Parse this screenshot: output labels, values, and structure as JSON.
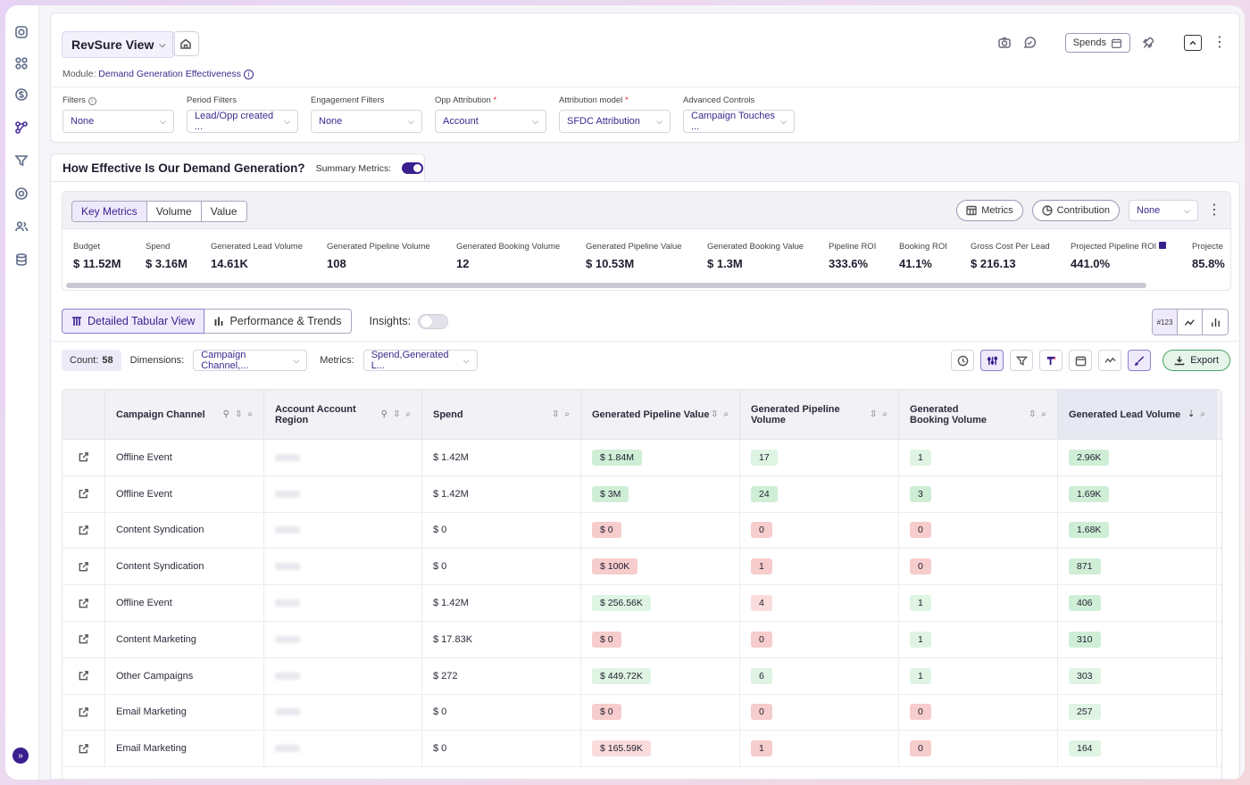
{
  "header": {
    "view_name": "RevSure View",
    "module_label": "Module:",
    "module_value": "Demand Generation Effectiveness",
    "spends_label": "Spends"
  },
  "filters": [
    {
      "label": "Filters",
      "value": "None",
      "required": false,
      "info": true
    },
    {
      "label": "Period Filters",
      "value": "Lead/Opp created ...",
      "required": false
    },
    {
      "label": "Engagement Filters",
      "value": "None",
      "required": false
    },
    {
      "label": "Opp Attribution",
      "value": "Account",
      "required": true
    },
    {
      "label": "Attribution model",
      "value": "SFDC Attribution",
      "required": true
    },
    {
      "label": "Advanced Controls",
      "value": "Campaign Touches ...",
      "required": false
    }
  ],
  "section": {
    "title": "How Effective Is Our Demand Generation?",
    "summary_label": "Summary Metrics:",
    "summary_on": true
  },
  "metric_tabs": [
    "Key Metrics",
    "Volume",
    "Value"
  ],
  "metric_actions": {
    "metrics": "Metrics",
    "contribution": "Contribution",
    "none": "None"
  },
  "metrics": [
    {
      "label": "Budget",
      "value": "$ 11.52M"
    },
    {
      "label": "Spend",
      "value": "$ 3.16M"
    },
    {
      "label": "Generated Lead Volume",
      "value": "14.61K"
    },
    {
      "label": "Generated Pipeline Volume",
      "value": "108"
    },
    {
      "label": "Generated Booking Volume",
      "value": "12"
    },
    {
      "label": "Generated Pipeline Value",
      "value": "$ 10.53M"
    },
    {
      "label": "Generated Booking Value",
      "value": "$ 1.3M"
    },
    {
      "label": "Pipeline ROI",
      "value": "333.6%"
    },
    {
      "label": "Booking ROI",
      "value": "41.1%"
    },
    {
      "label": "Gross Cost Per Lead",
      "value": "$ 216.13"
    },
    {
      "label": "Projected Pipeline ROI",
      "value": "441.0%"
    },
    {
      "label": "Projecte",
      "value": "85.8%"
    }
  ],
  "views": {
    "tabular": "Detailed Tabular View",
    "trends": "Performance & Trends",
    "insights": "Insights:",
    "num_toggle": "#123"
  },
  "controls": {
    "count_label": "Count:",
    "count_value": "58",
    "dimensions_label": "Dimensions:",
    "dimensions_value": "Campaign Channel,...",
    "metrics_label": "Metrics:",
    "metrics_value": "Spend,Generated L...",
    "export_label": "Export"
  },
  "table": {
    "columns": [
      "Campaign Channel",
      "Account Account Region",
      "Spend",
      "Generated Pipeline Value",
      "Generated Pipeline Volume",
      "Generated Booking Volume",
      "Generated Lead Volume"
    ],
    "rows": [
      {
        "channel": "Offline Event",
        "spend": "$ 1.42M",
        "pv": "$ 1.84M",
        "pv_s": "g",
        "pvol": "17",
        "pvol_s": "lg",
        "bvol": "1",
        "bvol_s": "lg",
        "lead": "2.96K",
        "lead_s": "g"
      },
      {
        "channel": "Offline Event",
        "spend": "$ 1.42M",
        "pv": "$ 3M",
        "pv_s": "g",
        "pvol": "24",
        "pvol_s": "g",
        "bvol": "3",
        "bvol_s": "g",
        "lead": "1.69K",
        "lead_s": "g"
      },
      {
        "channel": "Content Syndication",
        "spend": "$ 0",
        "pv": "$ 0",
        "pv_s": "r",
        "pvol": "0",
        "pvol_s": "r",
        "bvol": "0",
        "bvol_s": "r",
        "lead": "1.68K",
        "lead_s": "g"
      },
      {
        "channel": "Content Syndication",
        "spend": "$ 0",
        "pv": "$ 100K",
        "pv_s": "r",
        "pvol": "1",
        "pvol_s": "r",
        "bvol": "0",
        "bvol_s": "r",
        "lead": "871",
        "lead_s": "g"
      },
      {
        "channel": "Offline Event",
        "spend": "$ 1.42M",
        "pv": "$ 256.56K",
        "pv_s": "lg",
        "pvol": "4",
        "pvol_s": "lr",
        "bvol": "1",
        "bvol_s": "lg",
        "lead": "406",
        "lead_s": "g"
      },
      {
        "channel": "Content Marketing",
        "spend": "$ 17.83K",
        "pv": "$ 0",
        "pv_s": "r",
        "pvol": "0",
        "pvol_s": "r",
        "bvol": "1",
        "bvol_s": "lg",
        "lead": "310",
        "lead_s": "g"
      },
      {
        "channel": "Other Campaigns",
        "spend": "$ 272",
        "pv": "$ 449.72K",
        "pv_s": "lg",
        "pvol": "6",
        "pvol_s": "lg",
        "bvol": "1",
        "bvol_s": "lg",
        "lead": "303",
        "lead_s": "lg"
      },
      {
        "channel": "Email Marketing",
        "spend": "$ 0",
        "pv": "$ 0",
        "pv_s": "r",
        "pvol": "0",
        "pvol_s": "r",
        "bvol": "0",
        "bvol_s": "r",
        "lead": "257",
        "lead_s": "lg"
      },
      {
        "channel": "Email Marketing",
        "spend": "$ 0",
        "pv": "$ 165.59K",
        "pv_s": "lr",
        "pvol": "1",
        "pvol_s": "r",
        "bvol": "0",
        "bvol_s": "r",
        "lead": "164",
        "lead_s": "lg"
      }
    ]
  },
  "icons": {
    "rail": [
      "instagram-icon",
      "grid-icon",
      "dollar-icon",
      "flow-icon",
      "funnel-icon",
      "target-icon",
      "users-icon",
      "database-icon"
    ],
    "accent": "#3a1f8f"
  }
}
